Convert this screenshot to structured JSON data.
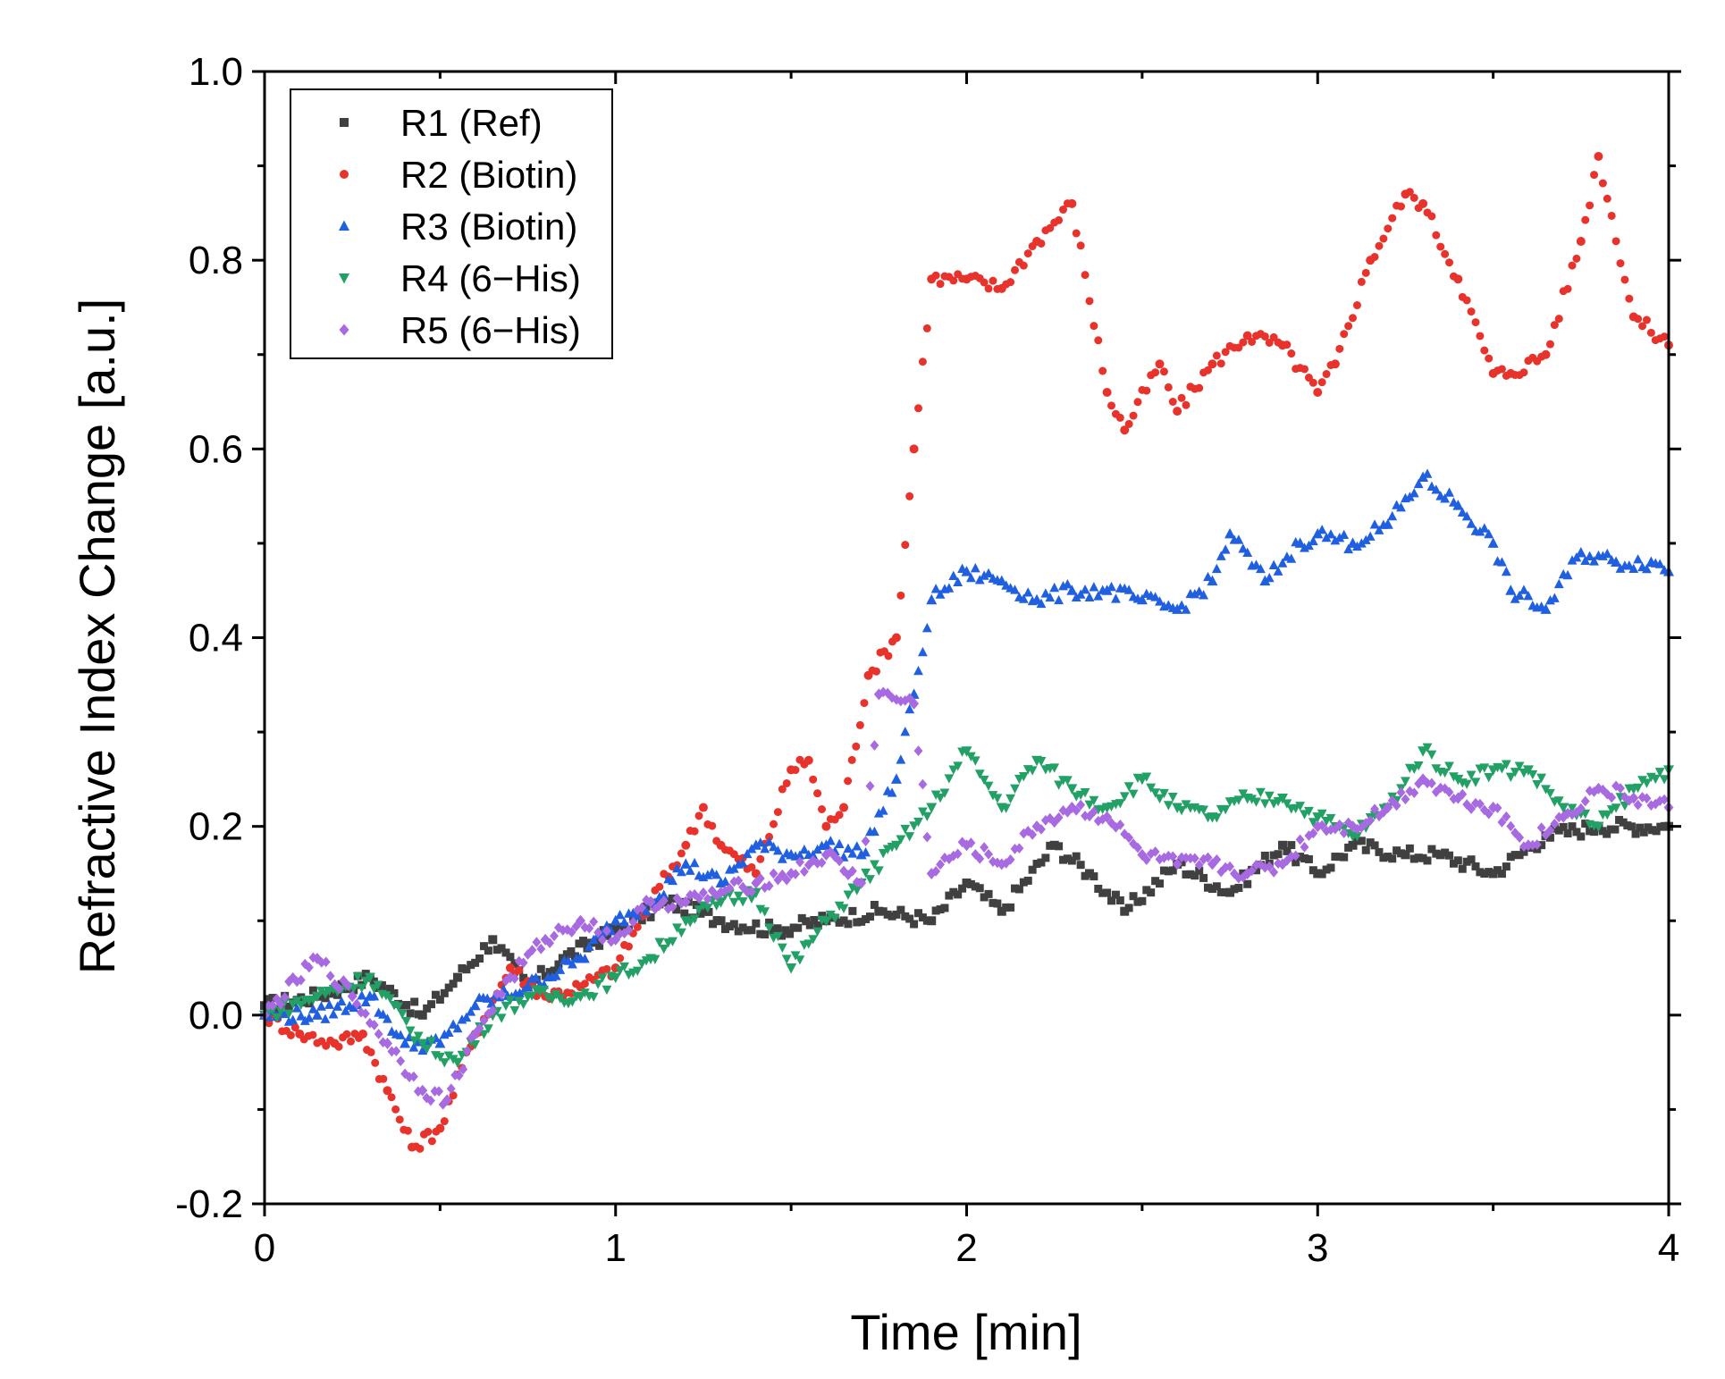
{
  "chart_data": {
    "type": "scatter",
    "title": "",
    "xlabel": "Time [min]",
    "ylabel": "Refractive Index Change [a.u.]",
    "xlim": [
      0,
      4
    ],
    "ylim": [
      -0.2,
      1.0
    ],
    "xticks": [
      0,
      1,
      2,
      3,
      4
    ],
    "xtick_labels": [
      "0",
      "1",
      "2",
      "3",
      "4"
    ],
    "yticks": [
      -0.2,
      0.0,
      0.2,
      0.4,
      0.6,
      0.8,
      1.0
    ],
    "ytick_labels": [
      "-0.2",
      "0.0",
      "0.2",
      "0.4",
      "0.6",
      "0.8",
      "1.0"
    ],
    "grid": false,
    "legend_position": "top-left",
    "series": [
      {
        "name": "R1 (Ref)",
        "color": "#404040",
        "marker": "square",
        "x": [
          0,
          0.15,
          0.3,
          0.45,
          0.55,
          0.65,
          0.75,
          0.85,
          1.0,
          1.15,
          1.3,
          1.45,
          1.6,
          1.75,
          1.9,
          2.0,
          2.1,
          2.25,
          2.35,
          2.45,
          2.6,
          2.75,
          2.9,
          3.0,
          3.1,
          3.25,
          3.35,
          3.5,
          3.65,
          3.8,
          4.0
        ],
        "y": [
          0.01,
          0.02,
          0.04,
          0.0,
          0.04,
          0.08,
          0.03,
          0.06,
          0.09,
          0.12,
          0.1,
          0.09,
          0.1,
          0.11,
          0.1,
          0.14,
          0.11,
          0.18,
          0.15,
          0.11,
          0.16,
          0.13,
          0.18,
          0.15,
          0.18,
          0.17,
          0.17,
          0.15,
          0.19,
          0.2,
          0.2
        ]
      },
      {
        "name": "R2 (Biotin)",
        "color": "#e8332d",
        "marker": "circle",
        "x": [
          0,
          0.1,
          0.2,
          0.28,
          0.35,
          0.42,
          0.5,
          0.6,
          0.7,
          0.8,
          0.9,
          1.0,
          1.1,
          1.2,
          1.25,
          1.3,
          1.4,
          1.5,
          1.55,
          1.6,
          1.65,
          1.72,
          1.8,
          1.85,
          1.9,
          2.0,
          2.1,
          2.2,
          2.3,
          2.4,
          2.45,
          2.55,
          2.6,
          2.7,
          2.8,
          2.9,
          3.0,
          3.05,
          3.15,
          3.25,
          3.3,
          3.4,
          3.5,
          3.55,
          3.65,
          3.75,
          3.8,
          3.9,
          4.0
        ],
        "y": [
          0.0,
          -0.02,
          -0.03,
          -0.02,
          -0.08,
          -0.14,
          -0.12,
          -0.02,
          0.05,
          0.02,
          0.03,
          0.05,
          0.12,
          0.18,
          0.22,
          0.18,
          0.15,
          0.26,
          0.27,
          0.2,
          0.22,
          0.36,
          0.4,
          0.6,
          0.78,
          0.78,
          0.77,
          0.82,
          0.86,
          0.66,
          0.62,
          0.69,
          0.64,
          0.69,
          0.72,
          0.71,
          0.66,
          0.69,
          0.8,
          0.87,
          0.86,
          0.78,
          0.68,
          0.68,
          0.7,
          0.82,
          0.91,
          0.74,
          0.71
        ]
      },
      {
        "name": "R3 (Biotin)",
        "color": "#1f5fe0",
        "marker": "triangle-up",
        "x": [
          0,
          0.15,
          0.3,
          0.4,
          0.5,
          0.6,
          0.75,
          0.9,
          1.0,
          1.1,
          1.2,
          1.3,
          1.4,
          1.5,
          1.6,
          1.7,
          1.8,
          1.85,
          1.9,
          2.0,
          2.1,
          2.2,
          2.3,
          2.4,
          2.5,
          2.6,
          2.7,
          2.75,
          2.85,
          2.95,
          3.0,
          3.1,
          3.2,
          3.3,
          3.4,
          3.5,
          3.55,
          3.65,
          3.75,
          3.85,
          3.95,
          4.0
        ],
        "y": [
          0.0,
          0.0,
          0.02,
          -0.03,
          -0.03,
          0.01,
          0.03,
          0.06,
          0.1,
          0.12,
          0.16,
          0.14,
          0.18,
          0.17,
          0.18,
          0.17,
          0.25,
          0.34,
          0.44,
          0.47,
          0.46,
          0.44,
          0.45,
          0.45,
          0.44,
          0.43,
          0.46,
          0.51,
          0.46,
          0.5,
          0.51,
          0.5,
          0.52,
          0.57,
          0.54,
          0.5,
          0.45,
          0.43,
          0.49,
          0.48,
          0.48,
          0.47
        ]
      },
      {
        "name": "R4 (6−His)",
        "color": "#22a065",
        "marker": "triangle-down",
        "x": [
          0,
          0.15,
          0.3,
          0.45,
          0.55,
          0.65,
          0.75,
          0.9,
          1.0,
          1.1,
          1.2,
          1.3,
          1.4,
          1.5,
          1.6,
          1.7,
          1.8,
          1.9,
          2.0,
          2.1,
          2.2,
          2.3,
          2.4,
          2.5,
          2.6,
          2.7,
          2.8,
          2.9,
          3.0,
          3.1,
          3.2,
          3.3,
          3.4,
          3.5,
          3.6,
          3.7,
          3.8,
          3.9,
          4.0
        ],
        "y": [
          0.0,
          0.02,
          0.04,
          -0.03,
          -0.05,
          0.0,
          0.02,
          0.02,
          0.04,
          0.06,
          0.1,
          0.12,
          0.13,
          0.05,
          0.1,
          0.14,
          0.18,
          0.22,
          0.28,
          0.22,
          0.27,
          0.24,
          0.22,
          0.25,
          0.22,
          0.21,
          0.23,
          0.23,
          0.21,
          0.19,
          0.22,
          0.28,
          0.25,
          0.26,
          0.26,
          0.22,
          0.2,
          0.24,
          0.26
        ]
      },
      {
        "name": "R5 (6−His)",
        "color": "#a86ae0",
        "marker": "diamond",
        "x": [
          0,
          0.15,
          0.25,
          0.35,
          0.45,
          0.52,
          0.6,
          0.7,
          0.8,
          0.9,
          1.0,
          1.1,
          1.2,
          1.3,
          1.4,
          1.5,
          1.6,
          1.7,
          1.75,
          1.85,
          1.9,
          2.0,
          2.1,
          2.2,
          2.3,
          2.4,
          2.5,
          2.6,
          2.7,
          2.8,
          2.9,
          3.0,
          3.1,
          3.2,
          3.3,
          3.4,
          3.5,
          3.6,
          3.7,
          3.8,
          3.9,
          4.0
        ],
        "y": [
          0.0,
          0.06,
          0.02,
          -0.03,
          -0.08,
          -0.09,
          -0.02,
          0.04,
          0.08,
          0.1,
          0.08,
          0.12,
          0.12,
          0.13,
          0.14,
          0.15,
          0.17,
          0.14,
          0.34,
          0.33,
          0.15,
          0.18,
          0.16,
          0.2,
          0.22,
          0.21,
          0.17,
          0.16,
          0.16,
          0.15,
          0.16,
          0.2,
          0.2,
          0.22,
          0.25,
          0.23,
          0.22,
          0.18,
          0.21,
          0.24,
          0.23,
          0.22
        ]
      }
    ]
  }
}
